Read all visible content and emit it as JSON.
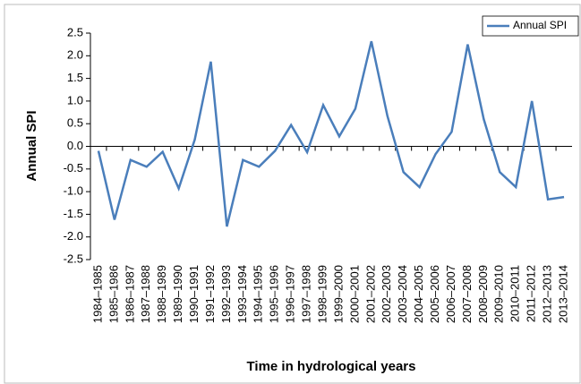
{
  "chart_data": {
    "type": "line",
    "y_label": "Annual SPI",
    "x_label": "Time in hydrological years",
    "categories": [
      "1984–1985",
      "1985–1986",
      "1986–1987",
      "1987–1988",
      "1988–1989",
      "1989–1990",
      "1990–1991",
      "1991–1992",
      "1992–1993",
      "1993–1994",
      "1994–1995",
      "1995–1996",
      "1996–1997",
      "1997–1998",
      "1998–1999",
      "1999–2000",
      "2000–2001",
      "2001–2002",
      "2002–2003",
      "2003–2004",
      "2004–2005",
      "2005–2006",
      "2006–2007",
      "2007–2008",
      "2008–2009",
      "2009–2010",
      "2010–2011",
      "2011–2012",
      "2012–2013",
      "2013–2014"
    ],
    "series": [
      {
        "name": "Annual SPI",
        "color": "#4a7ebb",
        "values": [
          -0.1,
          -1.62,
          -0.3,
          -0.45,
          -0.12,
          -0.93,
          0.15,
          1.87,
          -1.77,
          -0.3,
          -0.45,
          -0.1,
          0.47,
          -0.13,
          0.91,
          0.22,
          0.83,
          2.32,
          0.67,
          -0.57,
          -0.9,
          -0.17,
          0.32,
          2.25,
          0.6,
          -0.57,
          -0.9,
          1.0,
          -1.17,
          -1.12
        ]
      }
    ],
    "ylim": [
      -2.5,
      2.5
    ],
    "yticks": [
      2.5,
      {
        "value": 2,
        "label": "2.0"
      },
      1.5,
      {
        "value": 1,
        "label": "1.0"
      },
      0.5,
      {
        "value": 0,
        "label": "0.0"
      },
      -0.5,
      {
        "value": -1,
        "label": "-1.0"
      },
      -1.5,
      {
        "value": -2,
        "label": "-2.0"
      },
      -2.5
    ],
    "legend": "top-right"
  }
}
